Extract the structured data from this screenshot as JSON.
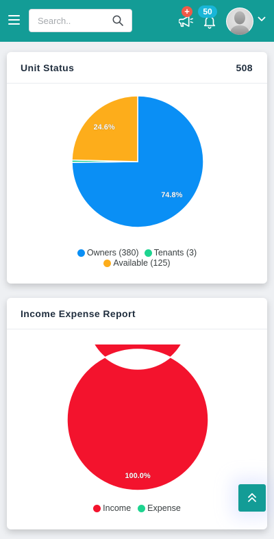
{
  "header": {
    "search_placeholder": "Search..",
    "announcement_badge": "+",
    "notification_badge": "50",
    "colors": {
      "bar": "#139c96",
      "announcement_badge": "#f05a48",
      "notification_badge": "#19b6d8"
    },
    "icons": [
      "menu-icon",
      "search-icon",
      "megaphone-icon",
      "bell-icon",
      "avatar",
      "chevron-down-icon"
    ]
  },
  "unit_status": {
    "title": "Unit Status",
    "total": "508",
    "chart_data": {
      "type": "pie",
      "slices": [
        {
          "label": "Owners (380)",
          "value": 380,
          "percent_label": "74.8%",
          "color": "#0a8ff5"
        },
        {
          "label": "Tenants (3)",
          "value": 3,
          "percent_label": "",
          "color": "#1ed490"
        },
        {
          "label": "Available (125)",
          "value": 125,
          "percent_label": "24.6%",
          "color": "#fdad1b"
        }
      ],
      "legend_position": "bottom"
    }
  },
  "income_expense": {
    "title": "Income Expense Report",
    "chart_data": {
      "type": "pie",
      "donut": true,
      "slices": [
        {
          "label": "Income",
          "value": 100,
          "percent_label": "100.0%",
          "color": "#f3132d"
        },
        {
          "label": "Expense",
          "value": 0,
          "percent_label": "",
          "color": "#1ed490"
        }
      ],
      "legend_position": "bottom"
    }
  },
  "scroll_top_icon": "double-chevron-up-icon"
}
